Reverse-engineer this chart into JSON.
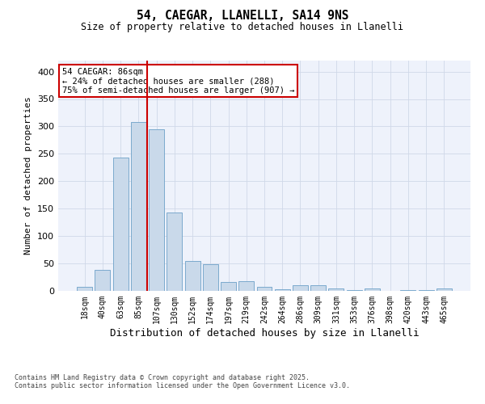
{
  "title1": "54, CAEGAR, LLANELLI, SA14 9NS",
  "title2": "Size of property relative to detached houses in Llanelli",
  "xlabel": "Distribution of detached houses by size in Llanelli",
  "ylabel": "Number of detached properties",
  "categories": [
    "18sqm",
    "40sqm",
    "63sqm",
    "85sqm",
    "107sqm",
    "130sqm",
    "152sqm",
    "174sqm",
    "197sqm",
    "219sqm",
    "242sqm",
    "264sqm",
    "286sqm",
    "309sqm",
    "331sqm",
    "353sqm",
    "376sqm",
    "398sqm",
    "420sqm",
    "443sqm",
    "465sqm"
  ],
  "values": [
    7,
    38,
    243,
    308,
    295,
    143,
    55,
    48,
    16,
    18,
    8,
    3,
    10,
    10,
    5,
    2,
    4,
    0,
    1,
    1,
    4
  ],
  "bar_color": "#c9d9ea",
  "bar_edge_color": "#6ca0c8",
  "red_line_index": 3.5,
  "annotation_line1": "54 CAEGAR: 86sqm",
  "annotation_line2": "← 24% of detached houses are smaller (288)",
  "annotation_line3": "75% of semi-detached houses are larger (907) →",
  "annotation_box_color": "#ffffff",
  "annotation_box_edge": "#cc0000",
  "red_line_color": "#cc0000",
  "grid_color": "#d0d8e8",
  "bg_color": "#eef2fb",
  "footer": "Contains HM Land Registry data © Crown copyright and database right 2025.\nContains public sector information licensed under the Open Government Licence v3.0.",
  "ylim": [
    0,
    420
  ],
  "yticks": [
    0,
    50,
    100,
    150,
    200,
    250,
    300,
    350,
    400
  ]
}
